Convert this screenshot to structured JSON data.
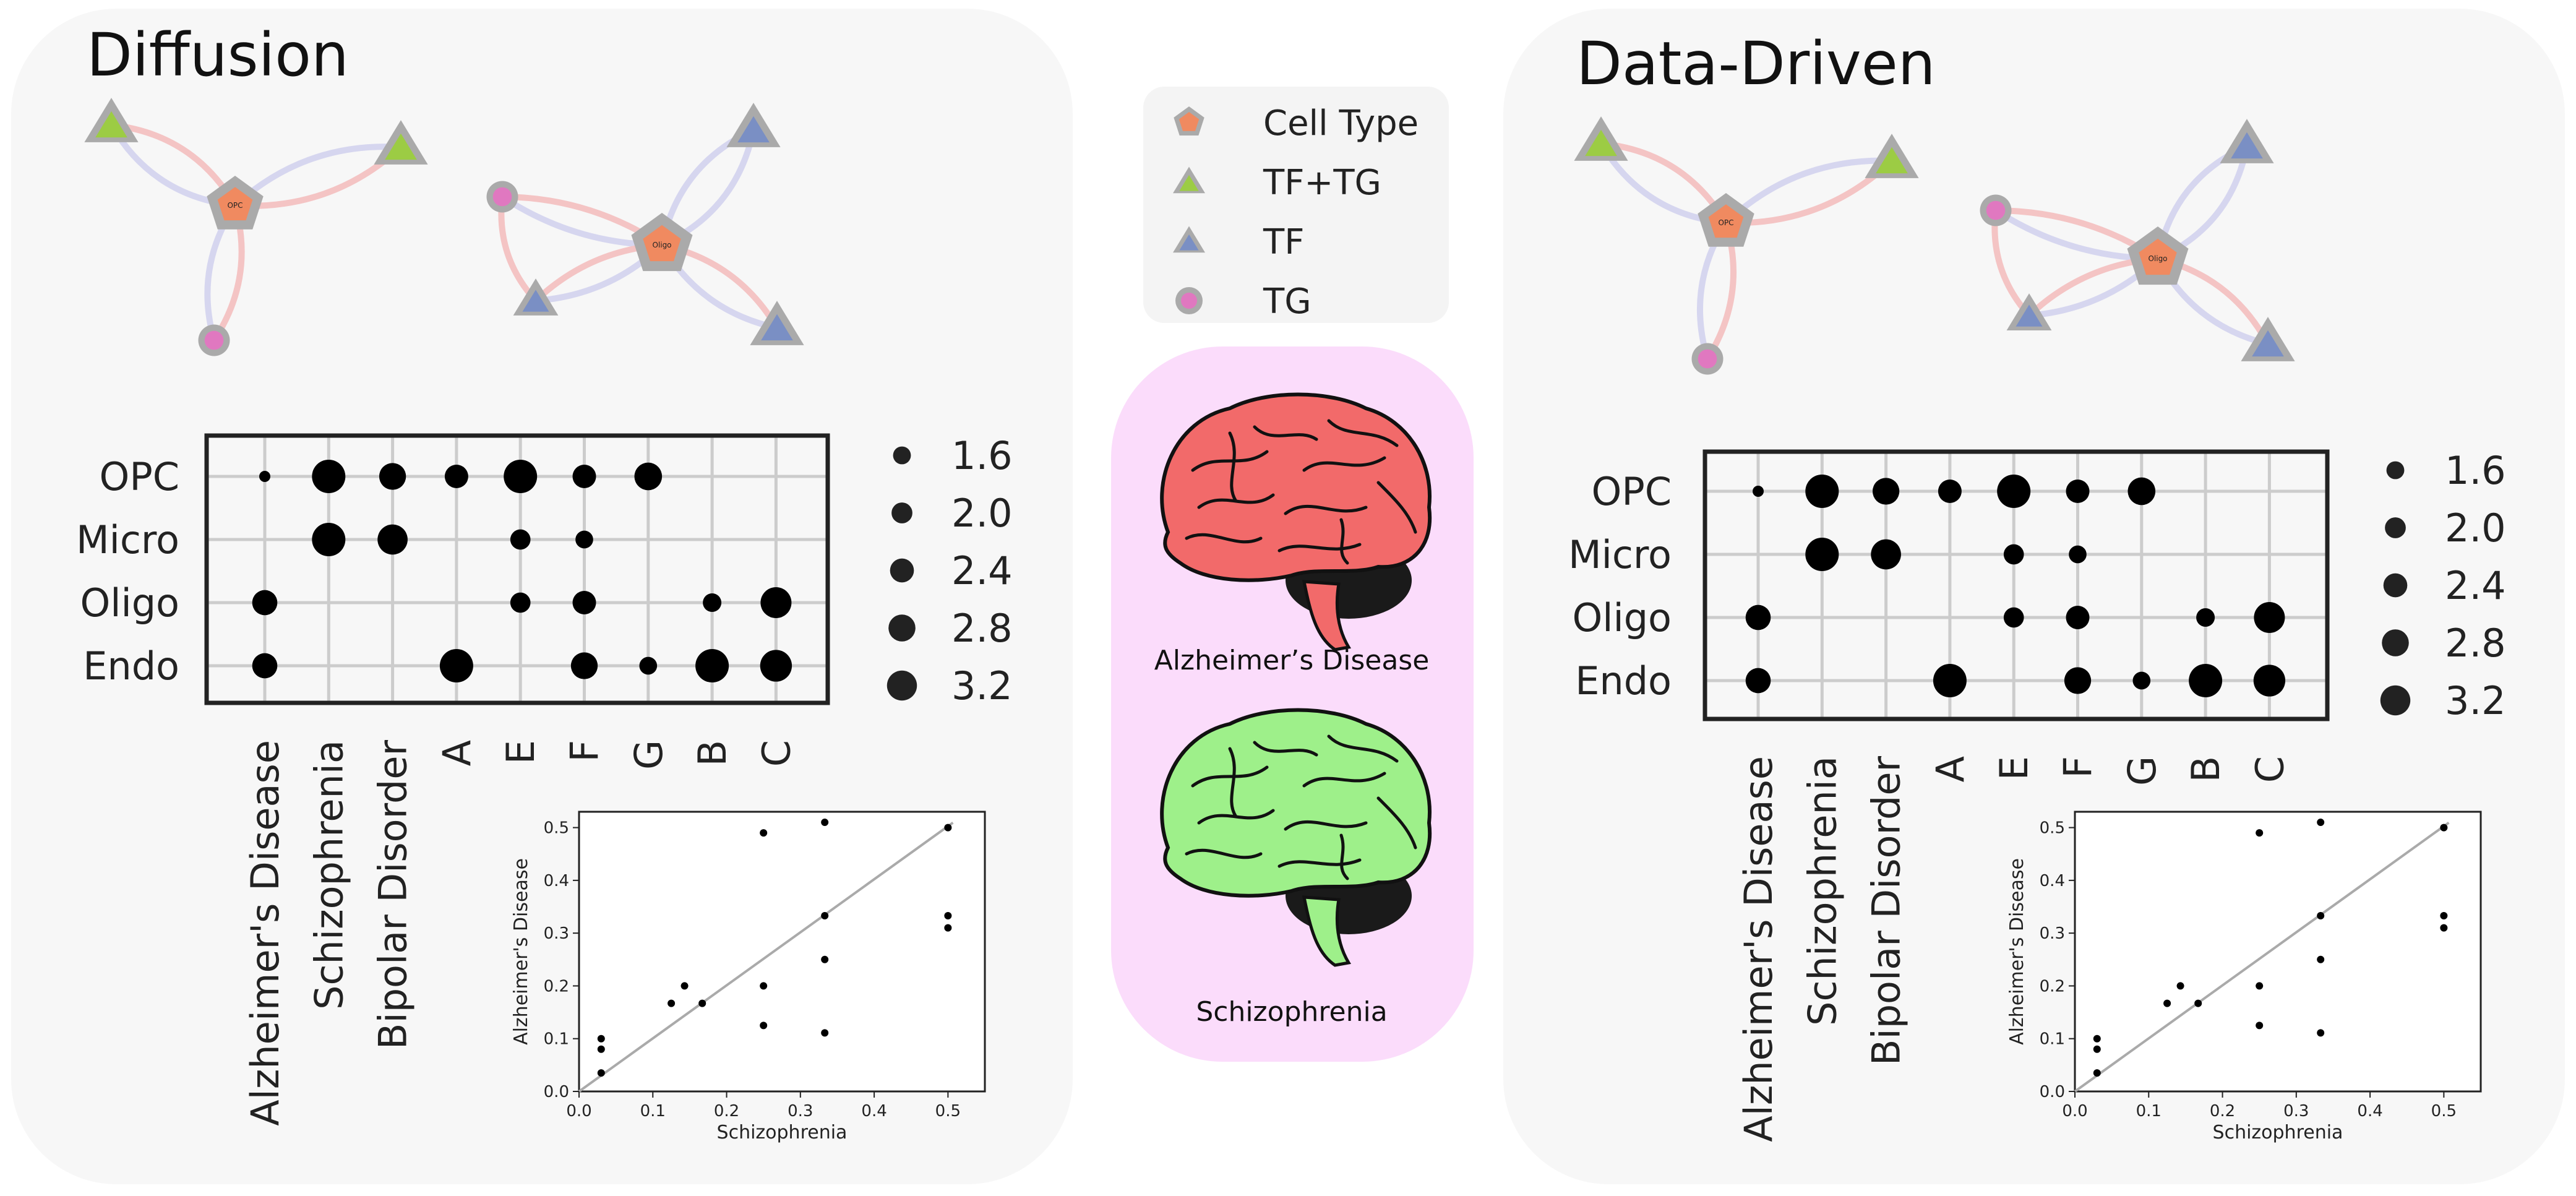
{
  "panels": [
    {
      "title": "Diffusion",
      "networks": [
        {
          "nodes": [
            {
              "type": "tf_tg"
            },
            {
              "type": "tf_tg"
            },
            {
              "type": "cell",
              "label": "OPC"
            },
            {
              "type": "tg"
            }
          ]
        },
        {
          "nodes": [
            {
              "type": "tg"
            },
            {
              "type": "tf"
            },
            {
              "type": "cell",
              "label": "Oligo"
            },
            {
              "type": "tf"
            },
            {
              "type": "tf"
            }
          ]
        }
      ]
    },
    {
      "title": "Data-Driven",
      "networks": [
        {
          "nodes": [
            {
              "type": "tf_tg"
            },
            {
              "type": "tf_tg"
            },
            {
              "type": "cell",
              "label": "OPC"
            },
            {
              "type": "tg"
            }
          ]
        },
        {
          "nodes": [
            {
              "type": "tg"
            },
            {
              "type": "tf"
            },
            {
              "type": "cell",
              "label": "Oligo"
            },
            {
              "type": "tf"
            },
            {
              "type": "tf"
            }
          ]
        }
      ]
    }
  ],
  "legend": {
    "items": [
      {
        "label": "Cell Type",
        "shape": "pentagon",
        "color": "#f08a60"
      },
      {
        "label": "TF+TG",
        "shape": "triangle",
        "color": "#9ccc44"
      },
      {
        "label": "TF",
        "shape": "triangle",
        "color": "#7a8fc4"
      },
      {
        "label": "TG",
        "shape": "circle",
        "color": "#e078c0"
      }
    ]
  },
  "brains": [
    {
      "label": "Alzheimer’s Disease",
      "color": "#f26a6a"
    },
    {
      "label": "Schizophrenia",
      "color": "#9ef08a"
    }
  ],
  "colors": {
    "panel_bg": "#f7f7f7",
    "brain_bg": "#fbdcfb",
    "node_stroke": "#999999",
    "edge_red": "#f4c4c4",
    "edge_blue": "#d6d6ef",
    "grid": "#cccccc",
    "fit_line": "#aaaaaa"
  },
  "chart_data": [
    {
      "type": "scatter",
      "subtype": "dot-matrix",
      "panel": "Diffusion",
      "rows": [
        "OPC",
        "Micro",
        "Oligo",
        "Endo"
      ],
      "columns": [
        "Alzheimer's Disease",
        "Schizophrenia",
        "Bipolar Disorder",
        "A",
        "E",
        "F",
        "G",
        "B",
        "C"
      ],
      "points": [
        {
          "row": "OPC",
          "col": "Alzheimer's Disease",
          "size": 0.6
        },
        {
          "row": "OPC",
          "col": "Schizophrenia",
          "size": 3.3
        },
        {
          "row": "OPC",
          "col": "Bipolar Disorder",
          "size": 2.5
        },
        {
          "row": "OPC",
          "col": "A",
          "size": 2.1
        },
        {
          "row": "OPC",
          "col": "E",
          "size": 3.3
        },
        {
          "row": "OPC",
          "col": "F",
          "size": 2.1
        },
        {
          "row": "OPC",
          "col": "G",
          "size": 2.6
        },
        {
          "row": "Micro",
          "col": "Schizophrenia",
          "size": 3.3
        },
        {
          "row": "Micro",
          "col": "Bipolar Disorder",
          "size": 2.9
        },
        {
          "row": "Micro",
          "col": "E",
          "size": 1.7
        },
        {
          "row": "Micro",
          "col": "F",
          "size": 1.4
        },
        {
          "row": "Oligo",
          "col": "Alzheimer's Disease",
          "size": 2.3
        },
        {
          "row": "Oligo",
          "col": "E",
          "size": 1.7
        },
        {
          "row": "Oligo",
          "col": "F",
          "size": 2.1
        },
        {
          "row": "Oligo",
          "col": "B",
          "size": 1.5
        },
        {
          "row": "Oligo",
          "col": "C",
          "size": 3.0
        },
        {
          "row": "Endo",
          "col": "Alzheimer's Disease",
          "size": 2.3
        },
        {
          "row": "Endo",
          "col": "A",
          "size": 3.3
        },
        {
          "row": "Endo",
          "col": "F",
          "size": 2.5
        },
        {
          "row": "Endo",
          "col": "G",
          "size": 1.4
        },
        {
          "row": "Endo",
          "col": "B",
          "size": 3.3
        },
        {
          "row": "Endo",
          "col": "C",
          "size": 3.1
        }
      ],
      "size_legend": [
        1.6,
        2.0,
        2.4,
        2.8,
        3.2
      ],
      "size_legend_labels": [
        "1.6",
        "2.0",
        "2.4",
        "2.8",
        "3.2"
      ],
      "grid": true
    },
    {
      "type": "scatter",
      "panel": "Diffusion",
      "xlabel": "Schizophrenia",
      "ylabel": "Alzheimer's Disease",
      "xlim": [
        0.0,
        0.55
      ],
      "ylim": [
        0.0,
        0.53
      ],
      "xticks": [
        "0.0",
        "0.1",
        "0.2",
        "0.3",
        "0.4",
        "0.5"
      ],
      "yticks": [
        "0.0",
        "0.1",
        "0.2",
        "0.3",
        "0.4",
        "0.5"
      ],
      "points": [
        {
          "x": 0.03,
          "y": 0.1
        },
        {
          "x": 0.03,
          "y": 0.08
        },
        {
          "x": 0.03,
          "y": 0.035
        },
        {
          "x": 0.125,
          "y": 0.167
        },
        {
          "x": 0.143,
          "y": 0.2
        },
        {
          "x": 0.167,
          "y": 0.167
        },
        {
          "x": 0.25,
          "y": 0.49
        },
        {
          "x": 0.25,
          "y": 0.2
        },
        {
          "x": 0.25,
          "y": 0.125
        },
        {
          "x": 0.333,
          "y": 0.51
        },
        {
          "x": 0.333,
          "y": 0.333
        },
        {
          "x": 0.333,
          "y": 0.25
        },
        {
          "x": 0.333,
          "y": 0.111
        },
        {
          "x": 0.5,
          "y": 0.5
        },
        {
          "x": 0.5,
          "y": 0.333
        },
        {
          "x": 0.5,
          "y": 0.31
        }
      ],
      "fit_line": [
        [
          0.0,
          0.0
        ],
        [
          0.5,
          0.5
        ]
      ],
      "grid": false
    },
    {
      "type": "scatter",
      "subtype": "dot-matrix",
      "panel": "Data-Driven",
      "rows": [
        "OPC",
        "Micro",
        "Oligo",
        "Endo"
      ],
      "columns": [
        "Alzheimer's Disease",
        "Schizophrenia",
        "Bipolar Disorder",
        "A",
        "E",
        "F",
        "G",
        "B",
        "C"
      ],
      "points": [
        {
          "row": "OPC",
          "col": "Alzheimer's Disease",
          "size": 0.6
        },
        {
          "row": "OPC",
          "col": "Schizophrenia",
          "size": 3.3
        },
        {
          "row": "OPC",
          "col": "Bipolar Disorder",
          "size": 2.5
        },
        {
          "row": "OPC",
          "col": "A",
          "size": 2.1
        },
        {
          "row": "OPC",
          "col": "E",
          "size": 3.3
        },
        {
          "row": "OPC",
          "col": "F",
          "size": 2.1
        },
        {
          "row": "OPC",
          "col": "G",
          "size": 2.6
        },
        {
          "row": "Micro",
          "col": "Schizophrenia",
          "size": 3.3
        },
        {
          "row": "Micro",
          "col": "Bipolar Disorder",
          "size": 2.9
        },
        {
          "row": "Micro",
          "col": "E",
          "size": 1.7
        },
        {
          "row": "Micro",
          "col": "F",
          "size": 1.4
        },
        {
          "row": "Oligo",
          "col": "Alzheimer's Disease",
          "size": 2.3
        },
        {
          "row": "Oligo",
          "col": "E",
          "size": 1.7
        },
        {
          "row": "Oligo",
          "col": "F",
          "size": 2.1
        },
        {
          "row": "Oligo",
          "col": "B",
          "size": 1.5
        },
        {
          "row": "Oligo",
          "col": "C",
          "size": 3.0
        },
        {
          "row": "Endo",
          "col": "Alzheimer's Disease",
          "size": 2.3
        },
        {
          "row": "Endo",
          "col": "A",
          "size": 3.3
        },
        {
          "row": "Endo",
          "col": "F",
          "size": 2.5
        },
        {
          "row": "Endo",
          "col": "G",
          "size": 1.4
        },
        {
          "row": "Endo",
          "col": "B",
          "size": 3.3
        },
        {
          "row": "Endo",
          "col": "C",
          "size": 3.1
        }
      ],
      "size_legend": [
        1.6,
        2.0,
        2.4,
        2.8,
        3.2
      ],
      "size_legend_labels": [
        "1.6",
        "2.0",
        "2.4",
        "2.8",
        "3.2"
      ],
      "grid": true
    },
    {
      "type": "scatter",
      "panel": "Data-Driven",
      "xlabel": "Schizophrenia",
      "ylabel": "Alzheimer's Disease",
      "xlim": [
        0.0,
        0.55
      ],
      "ylim": [
        0.0,
        0.53
      ],
      "xticks": [
        "0.0",
        "0.1",
        "0.2",
        "0.3",
        "0.4",
        "0.5"
      ],
      "yticks": [
        "0.0",
        "0.1",
        "0.2",
        "0.3",
        "0.4",
        "0.5"
      ],
      "points": [
        {
          "x": 0.03,
          "y": 0.1
        },
        {
          "x": 0.03,
          "y": 0.08
        },
        {
          "x": 0.03,
          "y": 0.035
        },
        {
          "x": 0.125,
          "y": 0.167
        },
        {
          "x": 0.143,
          "y": 0.2
        },
        {
          "x": 0.167,
          "y": 0.167
        },
        {
          "x": 0.25,
          "y": 0.49
        },
        {
          "x": 0.25,
          "y": 0.2
        },
        {
          "x": 0.25,
          "y": 0.125
        },
        {
          "x": 0.333,
          "y": 0.51
        },
        {
          "x": 0.333,
          "y": 0.333
        },
        {
          "x": 0.333,
          "y": 0.25
        },
        {
          "x": 0.333,
          "y": 0.111
        },
        {
          "x": 0.5,
          "y": 0.5
        },
        {
          "x": 0.5,
          "y": 0.333
        },
        {
          "x": 0.5,
          "y": 0.31
        }
      ],
      "fit_line": [
        [
          0.0,
          0.0
        ],
        [
          0.5,
          0.5
        ]
      ],
      "grid": false
    }
  ]
}
